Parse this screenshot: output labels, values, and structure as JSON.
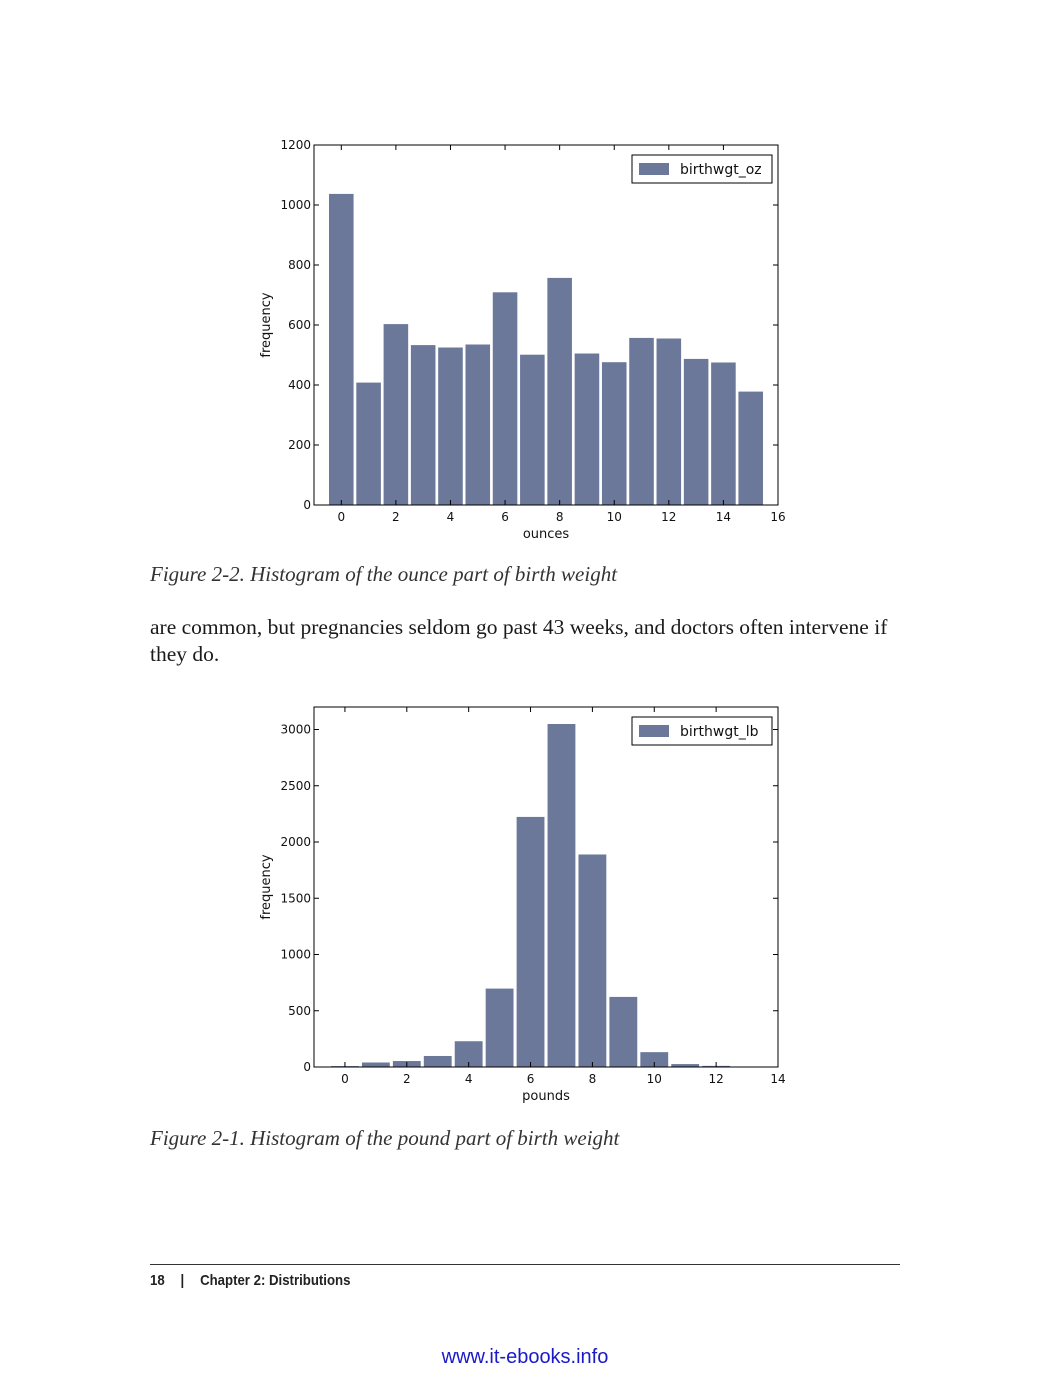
{
  "figure_top": {
    "caption": "Figure 2-2. Histogram of the ounce part of birth weight",
    "chart_data": {
      "type": "bar",
      "x": [
        0,
        1,
        2,
        3,
        4,
        5,
        6,
        7,
        8,
        9,
        10,
        11,
        12,
        13,
        14,
        15
      ],
      "series": [
        {
          "name": "birthwgt_oz",
          "values": [
            1037,
            408,
            603,
            533,
            525,
            535,
            709,
            501,
            757,
            505,
            476,
            557,
            555,
            487,
            475,
            378
          ]
        }
      ],
      "xlabel": "ounces",
      "ylabel": "frequency",
      "xlim": [
        -1,
        16
      ],
      "ylim": [
        0,
        1200
      ],
      "xticks": [
        0,
        2,
        4,
        6,
        8,
        10,
        12,
        14,
        16
      ],
      "yticks": [
        0,
        200,
        400,
        600,
        800,
        1000,
        1200
      ],
      "legend": "top-right",
      "bar_color": "#6b7899",
      "grid": false
    }
  },
  "body_text": "are common, but pregnancies seldom go past 43 weeks, and doctors often intervene if they do.",
  "figure_bottom": {
    "caption": "Figure 2-1. Histogram of the pound part of birth weight",
    "chart_data": {
      "type": "bar",
      "x": [
        0,
        1,
        2,
        3,
        4,
        5,
        6,
        7,
        8,
        9,
        10,
        11,
        12,
        13
      ],
      "series": [
        {
          "name": "birthwgt_lb",
          "values": [
            8,
            40,
            53,
            98,
            229,
            697,
            2223,
            3049,
            1889,
            623,
            132,
            26,
            10,
            3
          ]
        }
      ],
      "xlabel": "pounds",
      "ylabel": "frequency",
      "xlim": [
        -1,
        14
      ],
      "ylim": [
        0,
        3200
      ],
      "xticks": [
        0,
        2,
        4,
        6,
        8,
        10,
        12,
        14
      ],
      "yticks": [
        0,
        500,
        1000,
        1500,
        2000,
        2500,
        3000
      ],
      "legend": "top-right",
      "bar_color": "#6b7899",
      "grid": false
    }
  },
  "footer": {
    "page_number": "18",
    "separator": "|",
    "chapter": "Chapter 2: Distributions"
  },
  "watermark": "www.it-ebooks.info"
}
